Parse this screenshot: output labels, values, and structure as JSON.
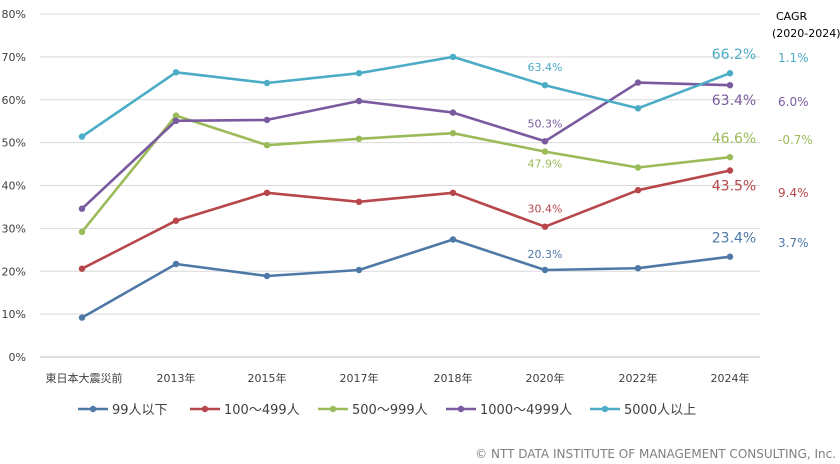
{
  "chart_data": {
    "type": "line",
    "categories": [
      "東日本大震災前",
      "2013年",
      "2015年",
      "2017年",
      "2018年",
      "2020年",
      "2022年",
      "2024年"
    ],
    "ylim": [
      0,
      80
    ],
    "yticks": [
      "0%",
      "10%",
      "20%",
      "30%",
      "40%",
      "50%",
      "60%",
      "70%",
      "80%"
    ],
    "grid": true,
    "legend_position": "bottom",
    "series": [
      {
        "name": "99人以下",
        "color": "#4e79a7",
        "values": [
          9.2,
          21.7,
          18.9,
          20.3,
          27.4,
          20.3,
          20.7,
          23.4
        ],
        "cagr": "3.7%"
      },
      {
        "name": "100～499人",
        "color": "#b7474a",
        "values": [
          20.6,
          31.8,
          38.3,
          36.2,
          38.3,
          30.4,
          38.9,
          43.5
        ],
        "cagr": "9.4%"
      },
      {
        "name": "500～999人",
        "color": "#9bbb59",
        "values": [
          29.2,
          56.3,
          49.4,
          50.9,
          52.2,
          47.9,
          44.2,
          46.6
        ],
        "cagr": "-0.7%"
      },
      {
        "name": "1000～4999人",
        "color": "#7a5a9e",
        "values": [
          34.6,
          55.1,
          55.3,
          59.7,
          57.0,
          50.3,
          64.0,
          63.4
        ],
        "cagr": "6.0%"
      },
      {
        "name": "5000人以上",
        "color": "#4bacc6",
        "values": [
          51.4,
          66.4,
          63.9,
          66.2,
          70.0,
          63.4,
          58.0,
          66.2
        ],
        "cagr": "1.1%"
      }
    ],
    "annotations_2020": [
      "63.4%",
      "50.3%",
      "47.9%",
      "30.4%",
      "20.3%"
    ],
    "annotations_2024": [
      "66.2%",
      "63.4%",
      "46.6%",
      "43.5%",
      "23.4%"
    ],
    "cagr_title": [
      "CAGR",
      "(2020-2024)"
    ]
  },
  "copyright": "© NTT DATA INSTITUTE OF MANAGEMENT CONSULTING, Inc."
}
